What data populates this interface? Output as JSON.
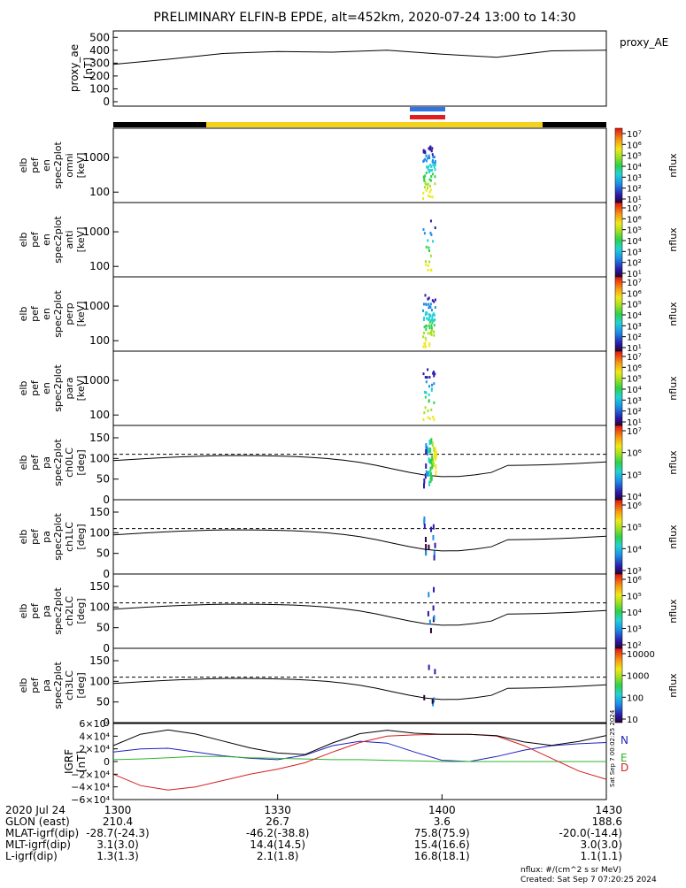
{
  "title": "PRELIMINARY ELFIN-B EPDE, alt=452km, 2020-07-24 13:00 to 14:30",
  "colors": {
    "n": "#1f1fbf",
    "e": "#2db52d",
    "d": "#d41f1f",
    "orbit_bar": "#f5d21a",
    "ae_line": "#000000"
  },
  "ae_panel": {
    "ylabel_lines": [
      "proxy_ae",
      "[nT]"
    ],
    "legend": "proxy_AE",
    "yticks": [
      "0",
      "100",
      "200",
      "300",
      "400",
      "500"
    ],
    "yrange": [
      0,
      550
    ]
  },
  "spectra_panels": [
    {
      "ylabel_lines": [
        "elb",
        "pef",
        "en",
        "spec2plot",
        "omni",
        "[keV]"
      ],
      "yticks": [
        "100",
        "1000"
      ],
      "cbar_ticks": [
        "10¹",
        "10²",
        "10³",
        "10⁴",
        "10⁵",
        "10⁶",
        "10⁷"
      ],
      "cbar_label": "nflux"
    },
    {
      "ylabel_lines": [
        "elb",
        "pef",
        "en",
        "spec2plot",
        "anti",
        "[keV]"
      ],
      "yticks": [
        "100",
        "1000"
      ],
      "cbar_ticks": [
        "10¹",
        "10²",
        "10³",
        "10⁴",
        "10⁵",
        "10⁶",
        "10⁷"
      ],
      "cbar_label": "nflux"
    },
    {
      "ylabel_lines": [
        "elb",
        "pef",
        "en",
        "spec2plot",
        "perp",
        "[keV]"
      ],
      "yticks": [
        "100",
        "1000"
      ],
      "cbar_ticks": [
        "10¹",
        "10²",
        "10³",
        "10⁴",
        "10⁵",
        "10⁶",
        "10⁷"
      ],
      "cbar_label": "nflux"
    },
    {
      "ylabel_lines": [
        "elb",
        "pef",
        "en",
        "spec2plot",
        "para",
        "[keV]"
      ],
      "yticks": [
        "100",
        "1000"
      ],
      "cbar_ticks": [
        "10¹",
        "10²",
        "10³",
        "10⁴",
        "10⁵",
        "10⁶",
        "10⁷"
      ],
      "cbar_label": "nflux"
    }
  ],
  "pa_panels": [
    {
      "ylabel_lines": [
        "elb",
        "pef",
        "pa",
        "spec2plot",
        "ch0LC",
        "[deg]"
      ],
      "yticks": [
        "0",
        "50",
        "100",
        "150"
      ],
      "cbar_ticks": [
        "10⁴",
        "10⁵",
        "10⁶",
        "10⁷"
      ],
      "cbar_label": "nflux"
    },
    {
      "ylabel_lines": [
        "elb",
        "pef",
        "pa",
        "spec2plot",
        "ch1LC",
        "[deg]"
      ],
      "yticks": [
        "0",
        "50",
        "100",
        "150"
      ],
      "cbar_ticks": [
        "10³",
        "10⁴",
        "10⁵",
        "10⁶"
      ],
      "cbar_label": "nflux"
    },
    {
      "ylabel_lines": [
        "elb",
        "pef",
        "pa",
        "spec2plot",
        "ch2LC",
        "[deg]"
      ],
      "yticks": [
        "0",
        "50",
        "100",
        "150"
      ],
      "cbar_ticks": [
        "10²",
        "10³",
        "10⁴",
        "10⁵",
        "10⁶"
      ],
      "cbar_label": "nflux"
    },
    {
      "ylabel_lines": [
        "elb",
        "pef",
        "pa",
        "spec2plot",
        "ch3LC",
        "[deg]"
      ],
      "yticks": [
        "0",
        "50",
        "100",
        "150"
      ],
      "cbar_ticks": [
        "10",
        "100",
        "1000",
        "10000"
      ],
      "cbar_label": "nflux"
    }
  ],
  "igrf_panel": {
    "ylabel_lines": [
      "IGRF",
      "[nT]"
    ],
    "yticks": [
      "−6×10⁴",
      "−4×10⁴",
      "−2×10⁴",
      "0",
      "2×10⁴",
      "4×10⁴",
      "6×10⁴"
    ],
    "legend": [
      "N",
      "E",
      "D"
    ],
    "side_text": "Sat Sep  7 00:02:25 2024"
  },
  "footer": {
    "rows": [
      {
        "label": "2020 Jul 24",
        "values": [
          "1300",
          "1330",
          "1400",
          "1430"
        ]
      },
      {
        "label": "GLON (east)",
        "values": [
          "210.4",
          "26.7",
          "3.6",
          "188.6"
        ]
      },
      {
        "label": "MLAT-igrf(dip)",
        "values": [
          "-28.7(-24.3)",
          "-46.2(-38.8)",
          "75.8(75.9)",
          "-20.0(-14.4)"
        ]
      },
      {
        "label": "MLT-igrf(dip)",
        "values": [
          "3.1(3.0)",
          "14.4(14.5)",
          "15.4(16.6)",
          "3.0(3.0)"
        ]
      },
      {
        "label": "L-igrf(dip)",
        "values": [
          "1.3(1.3)",
          "2.1(1.8)",
          "16.8(18.1)",
          "1.1(1.1)"
        ]
      }
    ],
    "units_note": "nflux: #/(cm^2 s sr MeV)",
    "created": "Created: Sat Sep  7 07:20:25 2024"
  },
  "chart_data": [
    {
      "type": "line",
      "x": [
        "13:00",
        "13:10",
        "13:20",
        "13:30",
        "13:40",
        "13:50",
        "14:00",
        "14:10",
        "14:20",
        "14:30"
      ],
      "series": [
        {
          "name": "proxy_AE",
          "values": [
            290,
            330,
            375,
            390,
            385,
            400,
            370,
            345,
            395,
            400
          ]
        }
      ],
      "ylabel": "proxy_ae [nT]",
      "ylim": [
        0,
        550
      ]
    },
    {
      "type": "line",
      "x": [
        "13:00",
        "13:05",
        "13:10",
        "13:15",
        "13:20",
        "13:25",
        "13:30",
        "13:35",
        "13:40",
        "13:45",
        "13:50",
        "13:55",
        "14:00",
        "14:05",
        "14:10",
        "14:15",
        "14:20",
        "14:25",
        "14:30"
      ],
      "series": [
        {
          "name": "N",
          "values": [
            15000,
            20000,
            21000,
            15000,
            9000,
            5000,
            3000,
            10000,
            25000,
            32000,
            29000,
            15000,
            2000,
            0,
            8000,
            18000,
            25000,
            28000,
            30000
          ]
        },
        {
          "name": "E",
          "values": [
            3000,
            4000,
            6000,
            8000,
            8000,
            6000,
            5000,
            4000,
            3000,
            3000,
            2000,
            1000,
            0,
            0,
            0,
            0,
            0,
            0,
            0
          ]
        },
        {
          "name": "D",
          "values": [
            -20000,
            -38000,
            -45000,
            -40000,
            -30000,
            -20000,
            -12000,
            -2000,
            15000,
            30000,
            40000,
            42000,
            43000,
            43000,
            40000,
            25000,
            5000,
            -15000,
            -28000
          ]
        }
      ],
      "ylabel": "IGRF [nT]",
      "ylim": [
        -60000,
        60000
      ]
    }
  ]
}
